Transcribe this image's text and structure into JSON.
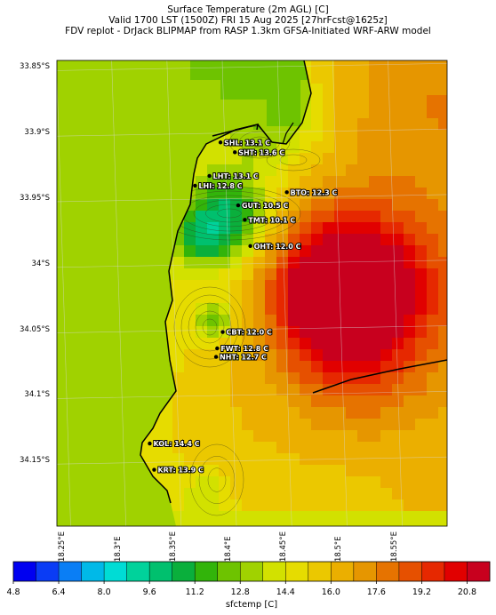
{
  "titles": {
    "line1": "Surface Temperature (2m AGL) [C]",
    "line2": "Valid 1700 LST (1500Z) FRI 15 Aug 2025 [27hrFcst@1625z]",
    "line3": "FDV replot - DrJack BLIPMAP from RASP 1.3km GFSA-Initiated WRF-ARW model"
  },
  "axes": {
    "lat_ticks": [
      "33.85°S",
      "33.9°S",
      "33.95°S",
      "34°S",
      "34.05°S",
      "34.1°S",
      "34.15°S"
    ],
    "lat_values": [
      -33.85,
      -33.9,
      -33.95,
      -34.0,
      -34.05,
      -34.1,
      -34.15
    ],
    "lon_ticks": [
      "18.25°E",
      "18.3°E",
      "18.35°E",
      "18.4°E",
      "18.45°E",
      "18.5°E",
      "18.55°E"
    ],
    "lon_values": [
      18.25,
      18.3,
      18.35,
      18.4,
      18.45,
      18.5,
      18.55
    ],
    "lat_range": [
      -34.2,
      -33.845
    ],
    "lon_range": [
      18.244,
      18.597
    ]
  },
  "colorbar": {
    "label": "sfctemp [C]",
    "tick_labels": [
      "4.8",
      "6.4",
      "8.0",
      "9.6",
      "11.2",
      "12.8",
      "14.4",
      "16.0",
      "17.6",
      "19.2",
      "20.8"
    ],
    "min": 4.8,
    "max": 21.6,
    "step": 0.8,
    "colors": [
      "#0000f0",
      "#0a3cf5",
      "#0a7ef5",
      "#00b9e8",
      "#00dcd5",
      "#00d29b",
      "#00c06e",
      "#0aaf3c",
      "#32b40a",
      "#6ec300",
      "#a0d200",
      "#d2e100",
      "#e6dc00",
      "#ebc800",
      "#ebaf00",
      "#e69600",
      "#e67300",
      "#e65000",
      "#e62800",
      "#e10000",
      "#c8001e"
    ]
  },
  "map_colors": {
    "sea": "#a0d200",
    "ocean_block": "#6ec300"
  },
  "stations": [
    {
      "code": "SHL",
      "label": "SHL: 13.1 C",
      "lat": -33.9075,
      "lon": 18.392,
      "temp": 13.1
    },
    {
      "code": "SHT",
      "label": "SHT: 13.6 C",
      "lat": -33.915,
      "lon": 18.405,
      "temp": 13.6
    },
    {
      "code": "LHT",
      "label": "LHT: 13.1 C",
      "lat": -33.933,
      "lon": 18.382,
      "temp": 13.1
    },
    {
      "code": "LHI",
      "label": "LHI: 12.8 C",
      "lat": -33.9405,
      "lon": 18.369,
      "temp": 12.8
    },
    {
      "code": "BTO",
      "label": "BTO: 12.3 C",
      "lat": -33.9455,
      "lon": 18.452,
      "temp": 12.3
    },
    {
      "code": "GUT",
      "label": "GUT: 10.5 C",
      "lat": -33.9555,
      "lon": 18.408,
      "temp": 10.5
    },
    {
      "code": "TMT",
      "label": "TMT: 10.1 C",
      "lat": -33.9665,
      "lon": 18.414,
      "temp": 10.1
    },
    {
      "code": "OHT",
      "label": "OHT: 12.0 C",
      "lat": -33.9865,
      "lon": 18.419,
      "temp": 12.0
    },
    {
      "code": "CBT",
      "label": "CBT: 12.0 C",
      "lat": -34.052,
      "lon": 18.394,
      "temp": 12.0
    },
    {
      "code": "FWT",
      "label": "FWT: 12.8 C",
      "lat": -34.0645,
      "lon": 18.389,
      "temp": 12.8
    },
    {
      "code": "NHT",
      "label": "NHT: 12.7 C",
      "lat": -34.071,
      "lon": 18.388,
      "temp": 12.7
    },
    {
      "code": "KOL",
      "label": "KOL: 14.4 C",
      "lat": -34.137,
      "lon": 18.328,
      "temp": 14.4
    },
    {
      "code": "KRT",
      "label": "KRT: 13.9 C",
      "lat": -34.157,
      "lon": 18.332,
      "temp": 13.9
    }
  ]
}
